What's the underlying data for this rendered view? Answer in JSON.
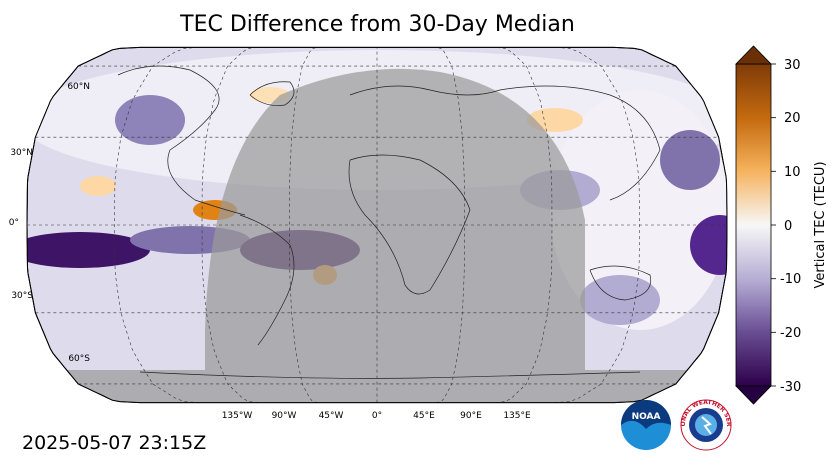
{
  "title": "TEC Difference from 30-Day Median",
  "timestamp": "2025-05-07 23:15Z",
  "map": {
    "projection": "robinson",
    "lat_labels": [
      "60°N",
      "30°N",
      "0°",
      "30°S",
      "60°S"
    ],
    "lon_labels": [
      "135°W",
      "90°W",
      "45°W",
      "0°",
      "45°E",
      "90°E",
      "135°E"
    ],
    "gridlines": true,
    "night_shading": true
  },
  "colorbar": {
    "label": "Vertical TEC (TECU)",
    "ticks": [
      "30",
      "20",
      "10",
      "0",
      "-10",
      "-20",
      "-30"
    ],
    "range": [
      -30,
      30
    ],
    "colors": {
      "positive": "#7f3b08",
      "mid": "#f7f7f7",
      "negative": "#2d004b"
    }
  },
  "logos": {
    "noaa": "NOAA",
    "nws": "NATIONAL WEATHER SERVICE"
  }
}
